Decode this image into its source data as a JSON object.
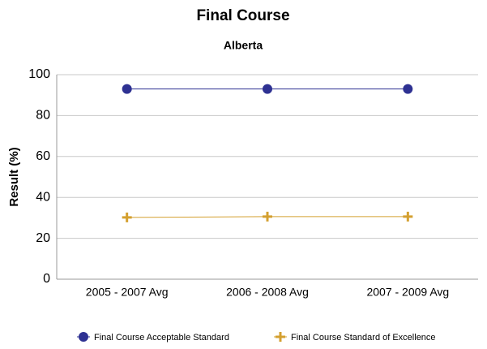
{
  "chart_data": {
    "type": "line",
    "title": "Final Course",
    "subtitle": "Alberta",
    "y_label": "Result (%)",
    "categories": [
      "2005 - 2007 Avg",
      "2006 - 2008 Avg",
      "2007 - 2009 Avg"
    ],
    "series": [
      {
        "name": "Final Course Acceptable Standard",
        "color": "#2e3192",
        "marker": "circle",
        "values": [
          93,
          93,
          93
        ]
      },
      {
        "name": "Final Course Standard of Excellence",
        "color": "#d4a030",
        "marker": "plus",
        "values": [
          30.2,
          30.6,
          30.6
        ]
      }
    ],
    "ylim": [
      0,
      100
    ],
    "yticks": [
      0,
      20,
      40,
      60,
      80,
      100
    ],
    "grid": true,
    "legend": "bottom"
  }
}
